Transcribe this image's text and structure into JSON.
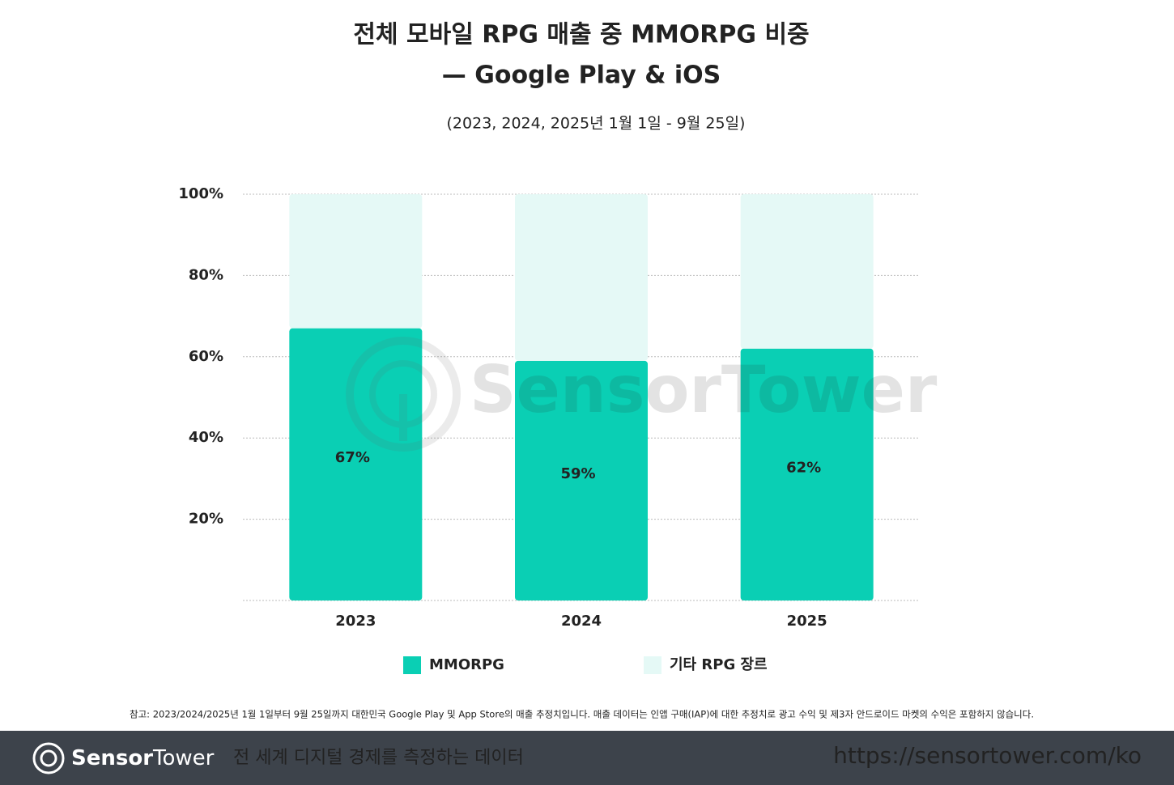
{
  "chart_data": {
    "type": "stacked_bar",
    "title": "전체 모바일 RPG 매출 중 MMORPG 비중",
    "title_line2": "— Google Play & iOS",
    "subtitle": "(2023, 2024, 2025년 1월 1일 - 9월 25일)",
    "categories": [
      "2023",
      "2024",
      "2025"
    ],
    "series": [
      {
        "name": "MMORPG",
        "color": "#0acfb4",
        "values": [
          67,
          59,
          62
        ],
        "value_labels": [
          "67%",
          "59%",
          "62%"
        ]
      },
      {
        "name": "기타 RPG 장르",
        "color": "#e5f9f6",
        "values": [
          33,
          41,
          38
        ]
      }
    ],
    "ylim": [
      0,
      100
    ],
    "yticks": [
      {
        "value": 20,
        "label": "20%"
      },
      {
        "value": 40,
        "label": "40%"
      },
      {
        "value": 60,
        "label": "60%"
      },
      {
        "value": 80,
        "label": "80%"
      },
      {
        "value": 100,
        "label": "100%"
      }
    ],
    "grid": true,
    "legend": "bottom"
  },
  "watermark": "SensorTower",
  "note": "참고: 2023/2024/2025년 1월 1일부터 9월 25일까지 대한민국 Google Play 및 App Store의 매출 추정치입니다. 매출 데이터는 인앱 구매(IAP)에 대한 추정치로 광고 수익 및 제3자 안드로이드 마켓의 수익은 포함하지 않습니다.",
  "footer": {
    "brand_bold": "Sensor",
    "brand_light": "Tower",
    "tagline": "전 세계 디지털 경제를 측정하는 데이터",
    "url": "https://sensortower.com/ko"
  }
}
